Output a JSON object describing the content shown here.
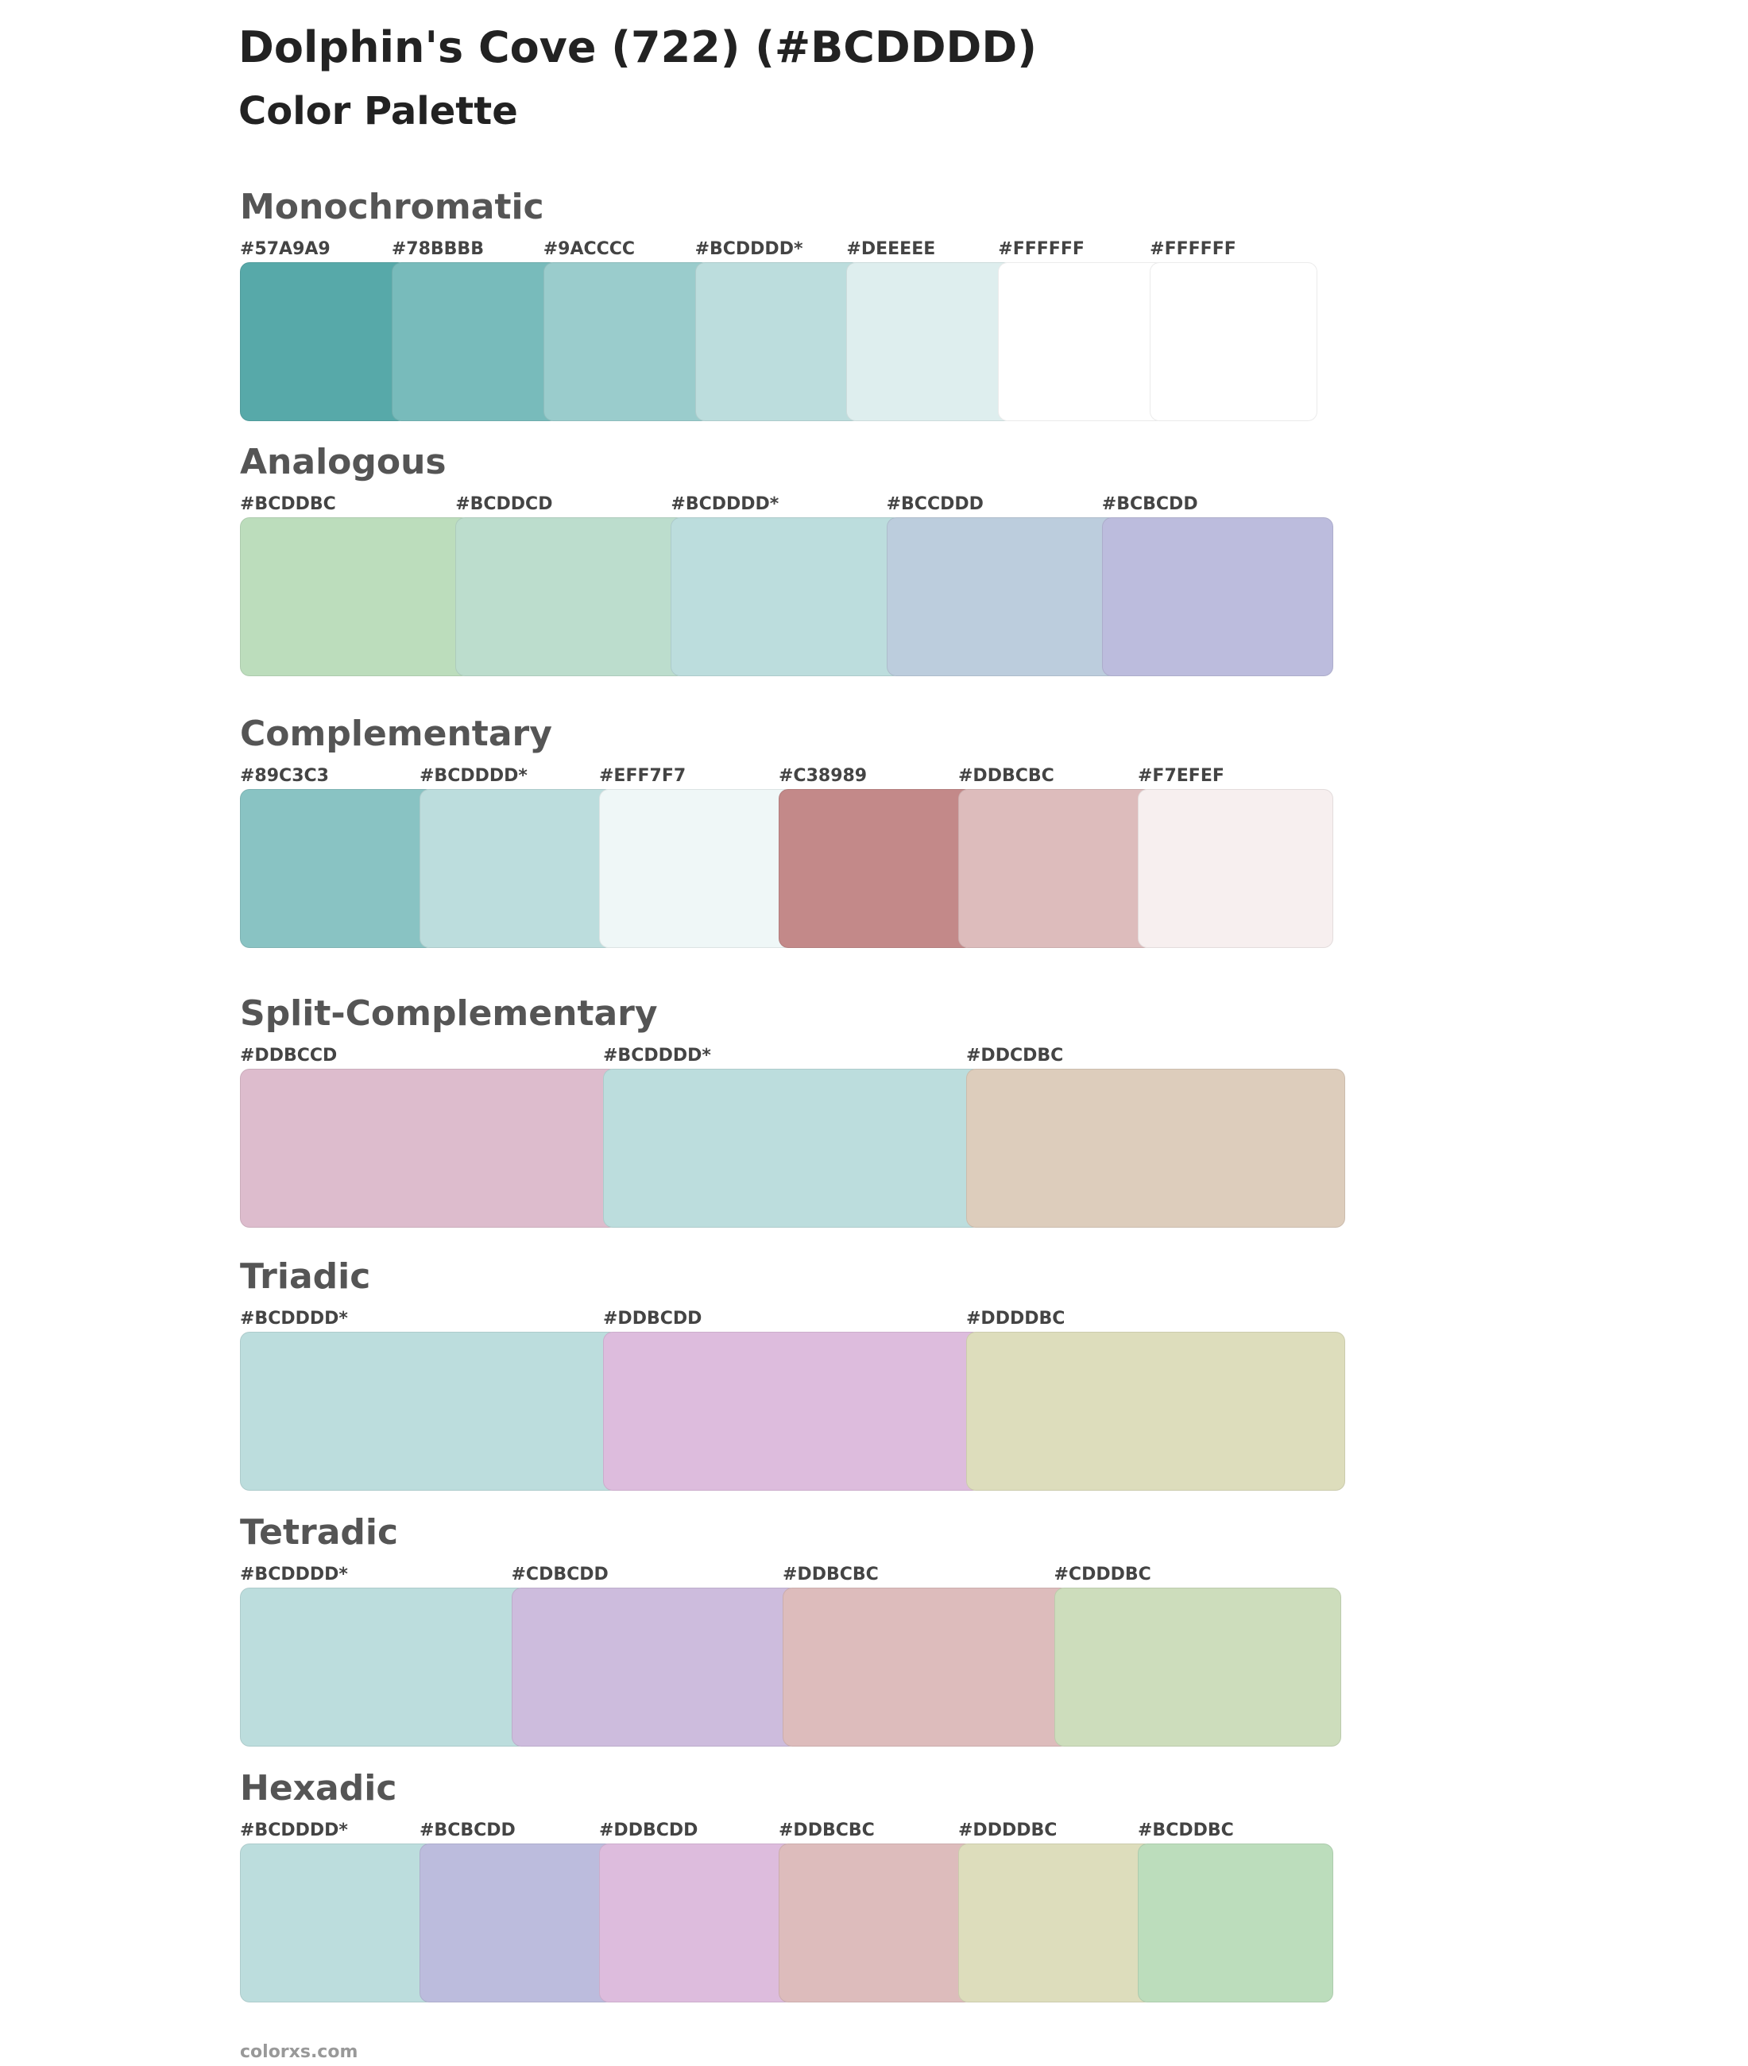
{
  "header": {
    "title": "Dolphin's Cove (722) (#BCDDDD)",
    "subtitle": "Color Palette"
  },
  "sections": [
    {
      "name": "Monochromatic",
      "swatches": [
        {
          "label": "#57A9A9",
          "color": "#57A9A9"
        },
        {
          "label": "#78BBBB",
          "color": "#78BBBB"
        },
        {
          "label": "#9ACCCC",
          "color": "#9ACCCC"
        },
        {
          "label": "#BCDDDD*",
          "color": "#BCDDDD"
        },
        {
          "label": "#DEEEEE",
          "color": "#DEEEEE"
        },
        {
          "label": "#FFFFFF",
          "color": "#FFFFFF"
        },
        {
          "label": "#FFFFFF",
          "color": "#FFFFFF"
        }
      ]
    },
    {
      "name": "Analogous",
      "swatches": [
        {
          "label": "#BCDDBC",
          "color": "#BCDDBC"
        },
        {
          "label": "#BCDDCD",
          "color": "#BCDDCD"
        },
        {
          "label": "#BCDDDD*",
          "color": "#BCDDDD"
        },
        {
          "label": "#BCCDDD",
          "color": "#BCCDDD"
        },
        {
          "label": "#BCBCDD",
          "color": "#BCBCDD"
        }
      ]
    },
    {
      "name": "Complementary",
      "swatches": [
        {
          "label": "#89C3C3",
          "color": "#89C3C3"
        },
        {
          "label": "#BCDDDD*",
          "color": "#BCDDDD"
        },
        {
          "label": "#EFF7F7",
          "color": "#EFF7F7"
        },
        {
          "label": "#C38989",
          "color": "#C38989"
        },
        {
          "label": "#DDBCBC",
          "color": "#DDBCBC"
        },
        {
          "label": "#F7EFEF",
          "color": "#F7EFEF"
        }
      ]
    },
    {
      "name": "Split-Complementary",
      "swatches": [
        {
          "label": "#DDBCCD",
          "color": "#DDBCCD"
        },
        {
          "label": "#BCDDDD*",
          "color": "#BCDDDD"
        },
        {
          "label": "#DDCDBC",
          "color": "#DDCDBC"
        }
      ]
    },
    {
      "name": "Triadic",
      "swatches": [
        {
          "label": "#BCDDDD*",
          "color": "#BCDDDD"
        },
        {
          "label": "#DDBCDD",
          "color": "#DDBCDD"
        },
        {
          "label": "#DDDDBC",
          "color": "#DDDDBC"
        }
      ]
    },
    {
      "name": "Tetradic",
      "swatches": [
        {
          "label": "#BCDDDD*",
          "color": "#BCDDDD"
        },
        {
          "label": "#CDBCDD",
          "color": "#CDBCDD"
        },
        {
          "label": "#DDBCBC",
          "color": "#DDBCBC"
        },
        {
          "label": "#CDDDBC",
          "color": "#CDDDBC"
        }
      ]
    },
    {
      "name": "Hexadic",
      "swatches": [
        {
          "label": "#BCDDDD*",
          "color": "#BCDDDD"
        },
        {
          "label": "#BCBCDD",
          "color": "#BCBCDD"
        },
        {
          "label": "#DDBCDD",
          "color": "#DDBCDD"
        },
        {
          "label": "#DDBCBC",
          "color": "#DDBCBC"
        },
        {
          "label": "#DDDDBC",
          "color": "#DDDDBC"
        },
        {
          "label": "#BCDDBC",
          "color": "#BCDDBC"
        }
      ]
    }
  ],
  "footer": "colorxs.com"
}
